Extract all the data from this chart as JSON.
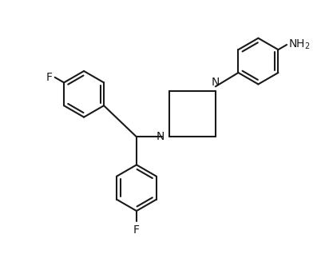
{
  "background_color": "#ffffff",
  "line_color": "#1a1a1a",
  "line_width": 1.5,
  "font_size": 10,
  "figsize": [
    4.12,
    3.18
  ],
  "dpi": 100,
  "xlim": [
    0,
    10
  ],
  "ylim": [
    0,
    7.7
  ]
}
